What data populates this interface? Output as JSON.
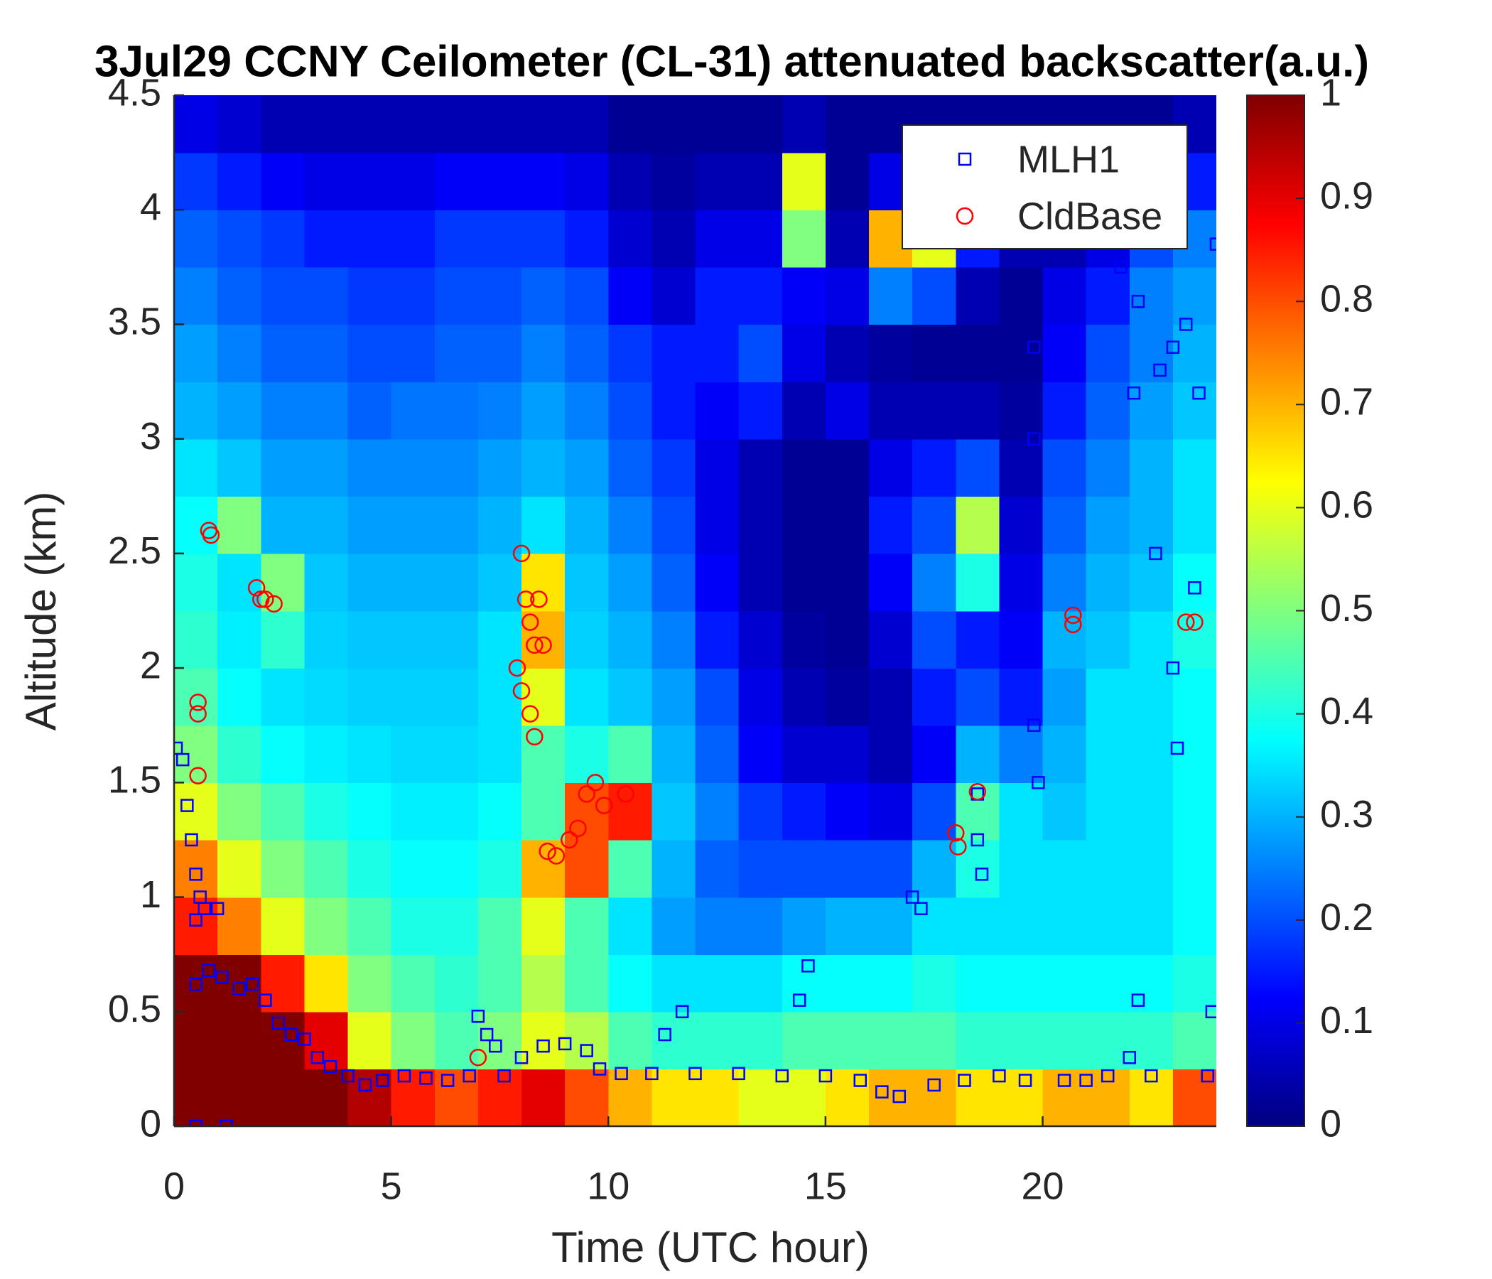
{
  "chart_data": {
    "type": "heatmap",
    "title": "3Jul29 CCNY Ceilometer (CL-31) attenuated backscatter(a.u.)",
    "x_label": "Time (UTC hour)",
    "y_label": "Altitude (km)",
    "xlim": [
      0,
      24
    ],
    "xticks": [
      0,
      5,
      10,
      15,
      20
    ],
    "ylim": [
      0,
      4.5
    ],
    "yticks": [
      0,
      0.5,
      1,
      1.5,
      2,
      2.5,
      3,
      3.5,
      4,
      4.5
    ],
    "colormap": "jet",
    "clim": [
      0,
      1
    ],
    "cticks": [
      0,
      0.1,
      0.2,
      0.3,
      0.4,
      0.5,
      0.6,
      0.7,
      0.8,
      0.9,
      1
    ],
    "xbins": [
      0,
      1,
      2,
      3,
      4,
      5,
      6,
      7,
      8,
      9,
      10,
      11,
      12,
      13,
      14,
      15,
      16,
      17,
      18,
      19,
      20,
      21,
      22,
      23,
      24
    ],
    "ybins": [
      0,
      0.25,
      0.5,
      0.75,
      1,
      1.25,
      1.5,
      1.75,
      2,
      2.25,
      2.5,
      2.75,
      3,
      3.25,
      3.5,
      3.75,
      4,
      4.25,
      4.5
    ],
    "z": [
      [
        1,
        1,
        1,
        1,
        0.95,
        0.85,
        0.8,
        0.85,
        0.9,
        0.8,
        0.7,
        0.65,
        0.65,
        0.6,
        0.6,
        0.65,
        0.7,
        0.7,
        0.65,
        0.65,
        0.7,
        0.7,
        0.65,
        0.8
      ],
      [
        1,
        1,
        1,
        0.9,
        0.6,
        0.5,
        0.45,
        0.5,
        0.6,
        0.55,
        0.45,
        0.42,
        0.42,
        0.42,
        0.45,
        0.45,
        0.45,
        0.45,
        0.42,
        0.42,
        0.42,
        0.42,
        0.42,
        0.45
      ],
      [
        1,
        1,
        0.85,
        0.65,
        0.5,
        0.45,
        0.42,
        0.45,
        0.55,
        0.45,
        0.38,
        0.35,
        0.35,
        0.35,
        0.38,
        0.38,
        0.38,
        0.4,
        0.38,
        0.38,
        0.38,
        0.38,
        0.38,
        0.4
      ],
      [
        0.85,
        0.75,
        0.6,
        0.5,
        0.45,
        0.4,
        0.4,
        0.45,
        0.6,
        0.45,
        0.35,
        0.28,
        0.25,
        0.25,
        0.28,
        0.3,
        0.3,
        0.35,
        0.35,
        0.35,
        0.35,
        0.35,
        0.35,
        0.38
      ],
      [
        0.75,
        0.6,
        0.5,
        0.45,
        0.4,
        0.38,
        0.38,
        0.4,
        0.7,
        0.8,
        0.45,
        0.3,
        0.22,
        0.2,
        0.2,
        0.2,
        0.2,
        0.3,
        0.4,
        0.35,
        0.35,
        0.35,
        0.35,
        0.38
      ],
      [
        0.6,
        0.5,
        0.45,
        0.4,
        0.38,
        0.36,
        0.36,
        0.38,
        0.45,
        0.8,
        0.85,
        0.32,
        0.25,
        0.18,
        0.15,
        0.12,
        0.1,
        0.2,
        0.45,
        0.35,
        0.32,
        0.35,
        0.35,
        0.38
      ],
      [
        0.5,
        0.42,
        0.38,
        0.36,
        0.35,
        0.34,
        0.34,
        0.35,
        0.45,
        0.4,
        0.45,
        0.3,
        0.22,
        0.12,
        0.08,
        0.08,
        0.05,
        0.12,
        0.3,
        0.25,
        0.3,
        0.35,
        0.35,
        0.38
      ],
      [
        0.45,
        0.38,
        0.35,
        0.34,
        0.33,
        0.33,
        0.33,
        0.35,
        0.6,
        0.35,
        0.32,
        0.28,
        0.2,
        0.1,
        0.05,
        0.03,
        0.05,
        0.15,
        0.2,
        0.15,
        0.28,
        0.35,
        0.35,
        0.38
      ],
      [
        0.42,
        0.36,
        0.42,
        0.33,
        0.32,
        0.32,
        0.32,
        0.35,
        0.7,
        0.33,
        0.3,
        0.25,
        0.15,
        0.08,
        0.03,
        0.02,
        0.08,
        0.2,
        0.15,
        0.12,
        0.3,
        0.32,
        0.35,
        0.4
      ],
      [
        0.4,
        0.35,
        0.5,
        0.32,
        0.3,
        0.3,
        0.3,
        0.32,
        0.65,
        0.32,
        0.28,
        0.22,
        0.12,
        0.05,
        0.02,
        0.02,
        0.12,
        0.25,
        0.4,
        0.1,
        0.25,
        0.3,
        0.32,
        0.38
      ],
      [
        0.38,
        0.5,
        0.3,
        0.3,
        0.28,
        0.28,
        0.28,
        0.3,
        0.35,
        0.3,
        0.25,
        0.2,
        0.1,
        0.05,
        0.02,
        0.02,
        0.15,
        0.2,
        0.55,
        0.08,
        0.22,
        0.28,
        0.3,
        0.35
      ],
      [
        0.35,
        0.32,
        0.28,
        0.28,
        0.26,
        0.26,
        0.26,
        0.28,
        0.3,
        0.28,
        0.22,
        0.18,
        0.1,
        0.05,
        0.02,
        0.02,
        0.1,
        0.15,
        0.2,
        0.05,
        0.2,
        0.25,
        0.3,
        0.35
      ],
      [
        0.3,
        0.28,
        0.25,
        0.25,
        0.22,
        0.24,
        0.24,
        0.25,
        0.28,
        0.25,
        0.2,
        0.15,
        0.12,
        0.15,
        0.05,
        0.1,
        0.05,
        0.05,
        0.05,
        0.03,
        0.15,
        0.22,
        0.28,
        0.32
      ],
      [
        0.28,
        0.25,
        0.22,
        0.22,
        0.2,
        0.2,
        0.22,
        0.22,
        0.25,
        0.22,
        0.18,
        0.15,
        0.15,
        0.2,
        0.1,
        0.05,
        0.03,
        0.02,
        0.02,
        0.02,
        0.12,
        0.2,
        0.25,
        0.3
      ],
      [
        0.25,
        0.22,
        0.2,
        0.2,
        0.18,
        0.18,
        0.2,
        0.2,
        0.22,
        0.2,
        0.12,
        0.08,
        0.15,
        0.15,
        0.12,
        0.1,
        0.25,
        0.2,
        0.05,
        0.02,
        0.1,
        0.15,
        0.25,
        0.28
      ],
      [
        0.22,
        0.2,
        0.18,
        0.15,
        0.15,
        0.15,
        0.18,
        0.18,
        0.18,
        0.15,
        0.08,
        0.05,
        0.1,
        0.1,
        0.5,
        0.05,
        0.7,
        0.6,
        0.15,
        0.05,
        0.05,
        0.1,
        0.2,
        0.25
      ],
      [
        0.18,
        0.15,
        0.12,
        0.1,
        0.1,
        0.1,
        0.12,
        0.12,
        0.12,
        0.1,
        0.05,
        0.03,
        0.05,
        0.05,
        0.6,
        0.02,
        0.1,
        0.05,
        0.02,
        0.02,
        0.02,
        0.02,
        0.05,
        0.15
      ],
      [
        0.1,
        0.08,
        0.05,
        0.05,
        0.05,
        0.05,
        0.05,
        0.05,
        0.05,
        0.05,
        0.02,
        0.02,
        0.02,
        0.02,
        0.05,
        0.02,
        0.02,
        0.02,
        0.02,
        0.02,
        0.02,
        0.02,
        0.02,
        0.05
      ]
    ],
    "series": [
      {
        "name": "MLH1",
        "color": "#0000ff",
        "marker": "square",
        "x": [
          0.05,
          0.2,
          0.3,
          0.4,
          0.5,
          0.6,
          0.7,
          0.5,
          1.0,
          0.5,
          0.8,
          1.1,
          1.5,
          1.8,
          2.1,
          2.4,
          2.7,
          3.0,
          3.3,
          3.6,
          4.0,
          4.4,
          4.8,
          5.3,
          5.8,
          6.3,
          6.8,
          7.0,
          7.2,
          7.4,
          7.6,
          8.0,
          8.5,
          9.0,
          9.5,
          9.8,
          10.3,
          11,
          11.3,
          11.7,
          12,
          13,
          14,
          14.4,
          14.6,
          15,
          15.8,
          16.3,
          16.7,
          17,
          17.2,
          17.5,
          18.2,
          18.5,
          18.5,
          18.6,
          19,
          19.6,
          19.8,
          19.9,
          19.8,
          19.8,
          20.5,
          21,
          21.5,
          21.8,
          22,
          22.1,
          22.2,
          22.2,
          22.5,
          22.6,
          22.7,
          23,
          23,
          23.1,
          23.3,
          23.5,
          23.6,
          23.8,
          23.9,
          24,
          0.5,
          1.2
        ],
        "values": [
          1.65,
          1.6,
          1.4,
          1.25,
          1.1,
          1.0,
          0.95,
          0.9,
          0.95,
          0.62,
          0.68,
          0.65,
          0.6,
          0.62,
          0.55,
          0.45,
          0.4,
          0.38,
          0.3,
          0.26,
          0.22,
          0.18,
          0.2,
          0.22,
          0.21,
          0.2,
          0.22,
          0.48,
          0.4,
          0.35,
          0.22,
          0.3,
          0.35,
          0.36,
          0.33,
          0.25,
          0.23,
          0.23,
          0.4,
          0.5,
          0.23,
          0.23,
          0.22,
          0.55,
          0.7,
          0.22,
          0.2,
          0.15,
          0.13,
          1.0,
          0.95,
          0.18,
          0.2,
          1.45,
          1.25,
          1.1,
          0.22,
          0.2,
          1.75,
          1.5,
          3.4,
          3.0,
          0.2,
          0.2,
          0.22,
          3.75,
          0.3,
          3.2,
          3.6,
          0.55,
          0.22,
          2.5,
          3.3,
          3.4,
          2.0,
          1.65,
          3.5,
          2.35,
          3.2,
          0.22,
          0.5,
          3.85,
          0.0,
          0.0
        ]
      },
      {
        "name": "CldBase",
        "color": "#ff0000",
        "marker": "circle",
        "x": [
          0.8,
          0.85,
          0.55,
          0.55,
          0.55,
          1.9,
          2.0,
          2.1,
          2.3,
          8.0,
          8.1,
          8.2,
          8.3,
          7.9,
          8.0,
          8.2,
          8.3,
          8.4,
          8.5,
          8.6,
          8.8,
          9.1,
          9.3,
          9.5,
          9.7,
          9.9,
          10.4,
          7.0,
          18.0,
          18.05,
          18.5,
          20.7,
          20.7,
          23.3,
          23.5
        ],
        "values": [
          2.6,
          2.58,
          1.85,
          1.8,
          1.53,
          2.35,
          2.3,
          2.3,
          2.28,
          2.5,
          2.3,
          2.2,
          2.1,
          2.0,
          1.9,
          1.8,
          1.7,
          2.3,
          2.1,
          1.2,
          1.18,
          1.25,
          1.3,
          1.45,
          1.5,
          1.4,
          1.45,
          0.3,
          1.28,
          1.22,
          1.46,
          2.23,
          2.19,
          2.2,
          2.2
        ]
      }
    ],
    "legend": "upper right"
  }
}
